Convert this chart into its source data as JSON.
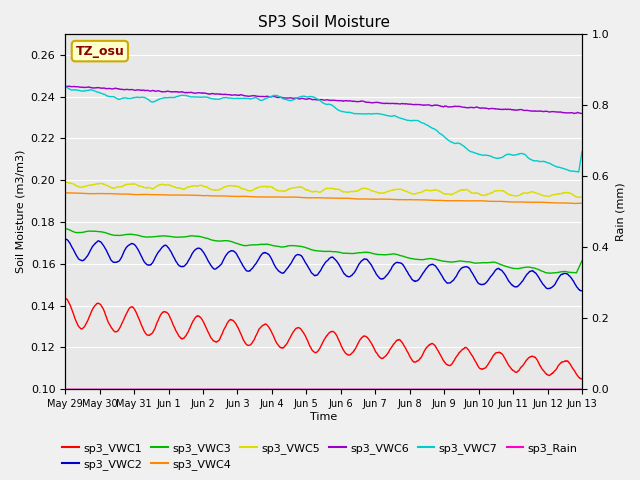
{
  "title": "SP3 Soil Moisture",
  "xlabel": "Time",
  "ylabel_left": "Soil Moisture (m3/m3)",
  "ylabel_right": "Rain (mm)",
  "ylim_left": [
    0.1,
    0.27
  ],
  "ylim_right": [
    0.0,
    1.0
  ],
  "background_color": "#e8e8e8",
  "fig_bg_color": "#f0f0f0",
  "annotation_text": "TZ_osu",
  "annotation_color": "#8b0000",
  "annotation_bg": "#ffffcc",
  "annotation_border": "#ccaa00",
  "xtick_labels": [
    "May 29",
    "May 30",
    "May 31",
    "Jun 1",
    "Jun 2",
    "Jun 3",
    "Jun 4",
    "Jun 5",
    "Jun 6",
    "Jun 7",
    "Jun 8",
    "Jun 9",
    "Jun 10",
    "Jun 11",
    "Jun 12",
    "Jun 13"
  ],
  "series": {
    "sp3_VWC1": {
      "color": "#ff0000",
      "lw": 1.0
    },
    "sp3_VWC2": {
      "color": "#0000cc",
      "lw": 1.0
    },
    "sp3_VWC3": {
      "color": "#00bb00",
      "lw": 1.0
    },
    "sp3_VWC4": {
      "color": "#ff8800",
      "lw": 1.0
    },
    "sp3_VWC5": {
      "color": "#dddd00",
      "lw": 1.0
    },
    "sp3_VWC6": {
      "color": "#9900cc",
      "lw": 1.0
    },
    "sp3_VWC7": {
      "color": "#00cccc",
      "lw": 1.0
    },
    "sp3_Rain": {
      "color": "#ff00cc",
      "lw": 1.0
    }
  }
}
